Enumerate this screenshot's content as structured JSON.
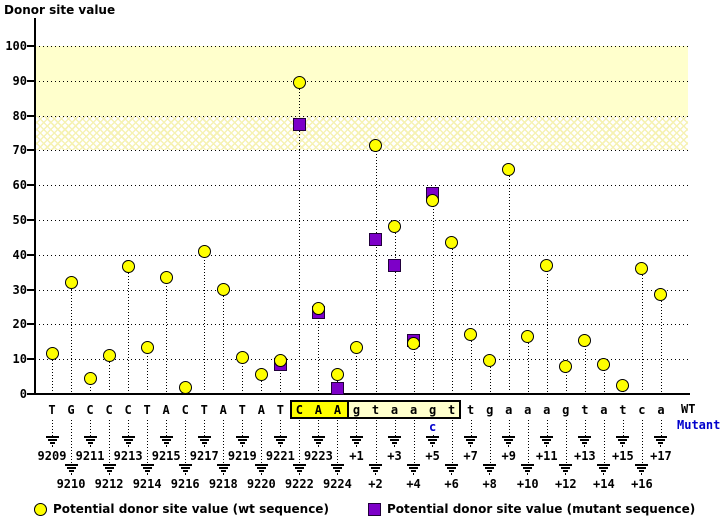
{
  "title": "Donor site value",
  "chart_data": {
    "type": "scatter",
    "title": "Donor site value",
    "ylabel": "Donor site value",
    "xlabel": "",
    "ylim": [
      0,
      108
    ],
    "yticks": [
      0,
      10,
      20,
      30,
      40,
      50,
      60,
      70,
      80,
      90,
      100
    ],
    "grid": "horizontal dotted lines at every 10",
    "bands": [
      {
        "from": 80,
        "to": 100,
        "fill": "solid",
        "color": "#ffffcc"
      },
      {
        "from": 70,
        "to": 80,
        "fill": "crosshatch",
        "color": "#ffffcc"
      }
    ],
    "series": [
      {
        "name": "Potential donor site value (wt sequence)",
        "marker": "circle",
        "color": "#ffff00"
      },
      {
        "name": "Potential donor site value (mutant sequence)",
        "marker": "square",
        "color": "#7d00c8"
      }
    ],
    "positions": [
      {
        "pos": "9209",
        "base": "T",
        "wt": 11.5,
        "mut": null
      },
      {
        "pos": "9210",
        "base": "G",
        "wt": 32,
        "mut": null
      },
      {
        "pos": "9211",
        "base": "C",
        "wt": 4.5,
        "mut": null
      },
      {
        "pos": "9212",
        "base": "C",
        "wt": 11,
        "mut": null
      },
      {
        "pos": "9213",
        "base": "C",
        "wt": 36.5,
        "mut": null
      },
      {
        "pos": "9214",
        "base": "T",
        "wt": 13.5,
        "mut": null
      },
      {
        "pos": "9215",
        "base": "A",
        "wt": 33.5,
        "mut": null
      },
      {
        "pos": "9216",
        "base": "C",
        "wt": 2,
        "mut": null
      },
      {
        "pos": "9217",
        "base": "T",
        "wt": 41,
        "mut": null
      },
      {
        "pos": "9218",
        "base": "A",
        "wt": 30,
        "mut": null
      },
      {
        "pos": "9219",
        "base": "T",
        "wt": 10.5,
        "mut": null
      },
      {
        "pos": "9220",
        "base": "A",
        "wt": 5.5,
        "mut": null
      },
      {
        "pos": "9221",
        "base": "T",
        "wt": 9.5,
        "mut": 8.5
      },
      {
        "pos": "9222",
        "base": "C",
        "wt": 89.5,
        "mut": 77.5,
        "box": "exon"
      },
      {
        "pos": "9223",
        "base": "A",
        "wt": 24.5,
        "mut": 23.5,
        "box": "exon"
      },
      {
        "pos": "9224",
        "base": "A",
        "wt": 5.5,
        "mut": 1.5,
        "box": "exon"
      },
      {
        "pos": "+1",
        "base": "g",
        "wt": 13.5,
        "mut": null,
        "box": "intron"
      },
      {
        "pos": "+2",
        "base": "t",
        "wt": 71.5,
        "mut": 44.5,
        "box": "intron"
      },
      {
        "pos": "+3",
        "base": "a",
        "wt": 48,
        "mut": 37,
        "box": "intron"
      },
      {
        "pos": "+4",
        "base": "a",
        "wt": 14.5,
        "mut": 15.5,
        "box": "intron"
      },
      {
        "pos": "+5",
        "base": "g",
        "wt": 55.5,
        "mut": 57.5,
        "box": "intron",
        "mut_base": "c"
      },
      {
        "pos": "+6",
        "base": "t",
        "wt": 43.5,
        "mut": null,
        "box": "intron"
      },
      {
        "pos": "+7",
        "base": "t",
        "wt": 17,
        "mut": null
      },
      {
        "pos": "+8",
        "base": "g",
        "wt": 9.5,
        "mut": null
      },
      {
        "pos": "+9",
        "base": "a",
        "wt": 64.5,
        "mut": null
      },
      {
        "pos": "+10",
        "base": "a",
        "wt": 16.5,
        "mut": null
      },
      {
        "pos": "+11",
        "base": "a",
        "wt": 37,
        "mut": null
      },
      {
        "pos": "+12",
        "base": "g",
        "wt": 8,
        "mut": null
      },
      {
        "pos": "+13",
        "base": "t",
        "wt": 15.5,
        "mut": null
      },
      {
        "pos": "+14",
        "base": "a",
        "wt": 8.5,
        "mut": null
      },
      {
        "pos": "+15",
        "base": "t",
        "wt": 2.5,
        "mut": null
      },
      {
        "pos": "+16",
        "base": "c",
        "wt": 36,
        "mut": null
      },
      {
        "pos": "+17",
        "base": "a",
        "wt": 28.5,
        "mut": null
      }
    ]
  },
  "row_labels": {
    "wt": "WT",
    "mutant": "Mutant"
  },
  "legend": {
    "wt": "Potential donor site value (wt sequence)",
    "mutant": "Potential donor site value (mutant sequence)"
  },
  "colors": {
    "wt_marker": "#ffff00",
    "mutant_marker": "#7d00c8",
    "band": "#ffffcc",
    "exon_box": "#ffff00",
    "intron_box": "#ffffcc",
    "mutant_text": "#0000cc"
  }
}
